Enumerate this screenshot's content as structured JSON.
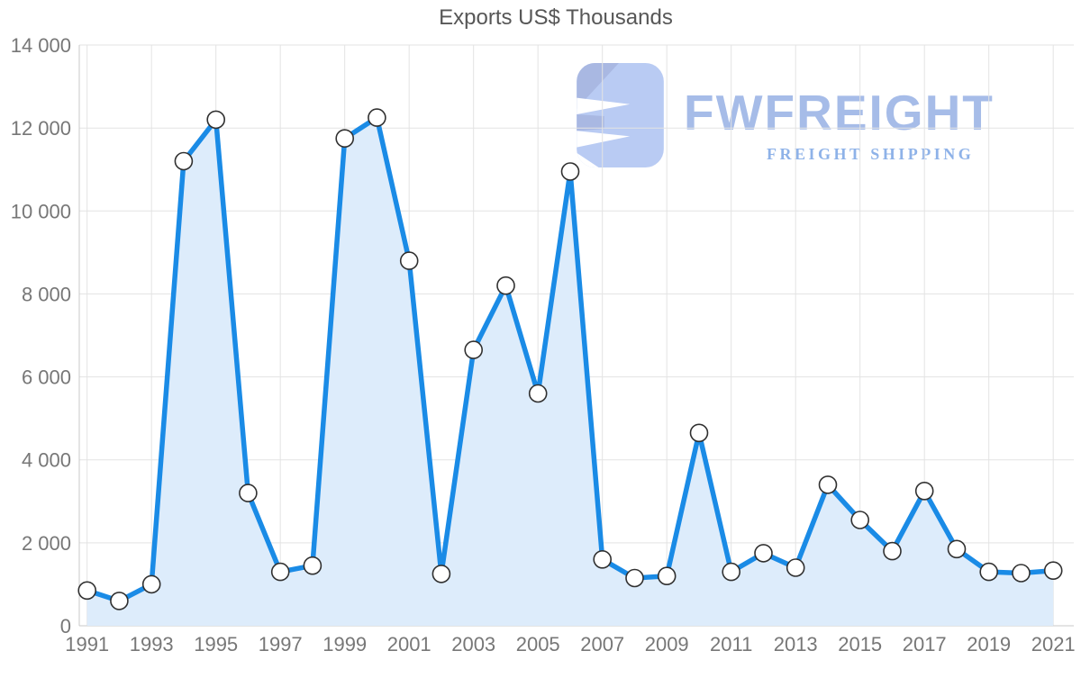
{
  "title": "Exports US$ Thousands",
  "logo": {
    "name": "FWFREIGHT",
    "subtitle": "FREIGHT SHIPPING",
    "icon": "fwfreight-mark-icon",
    "wordmark_color": "#a6bce8",
    "subtitle_color": "#8eb2e8",
    "icon_body_color": "#b9cbf3",
    "icon_shade_color": "#a9b8e2"
  },
  "colors": {
    "line": "#1a8be6",
    "area": "#ddecfb",
    "marker_fill": "#ffffff",
    "marker_stroke": "#303030",
    "grid": "#e3e3e3",
    "axis": "#c9c9c9",
    "tick_label": "#777777",
    "title": "#575757"
  },
  "chart_data": {
    "type": "area",
    "title": "Exports US$ Thousands",
    "xlabel": "",
    "ylabel": "",
    "grid": true,
    "legend": false,
    "ylim": [
      0,
      14000
    ],
    "x": [
      1991,
      1992,
      1993,
      1994,
      1995,
      1996,
      1997,
      1998,
      1999,
      2000,
      2001,
      2002,
      2003,
      2004,
      2005,
      2006,
      2007,
      2008,
      2009,
      2010,
      2011,
      2012,
      2013,
      2014,
      2015,
      2016,
      2017,
      2018,
      2019,
      2020,
      2021
    ],
    "values": [
      850,
      600,
      1000,
      11200,
      12200,
      3200,
      1300,
      1450,
      11750,
      12250,
      8800,
      1250,
      6650,
      8200,
      5600,
      10950,
      1600,
      1150,
      1200,
      4650,
      1300,
      1750,
      1400,
      3400,
      2550,
      1800,
      3250,
      1850,
      1300,
      1270,
      1330
    ],
    "y_ticks": [
      0,
      2000,
      4000,
      6000,
      8000,
      10000,
      12000,
      14000
    ],
    "y_tick_labels": [
      "0",
      "2 000",
      "4 000",
      "6 000",
      "8 000",
      "10 000",
      "12 000",
      "14 000"
    ],
    "x_tick_labels": [
      "1991",
      "1993",
      "1995",
      "1997",
      "1999",
      "2001",
      "2003",
      "2005",
      "2007",
      "2009",
      "2011",
      "2013",
      "2015",
      "2017",
      "2019",
      "2021"
    ]
  }
}
